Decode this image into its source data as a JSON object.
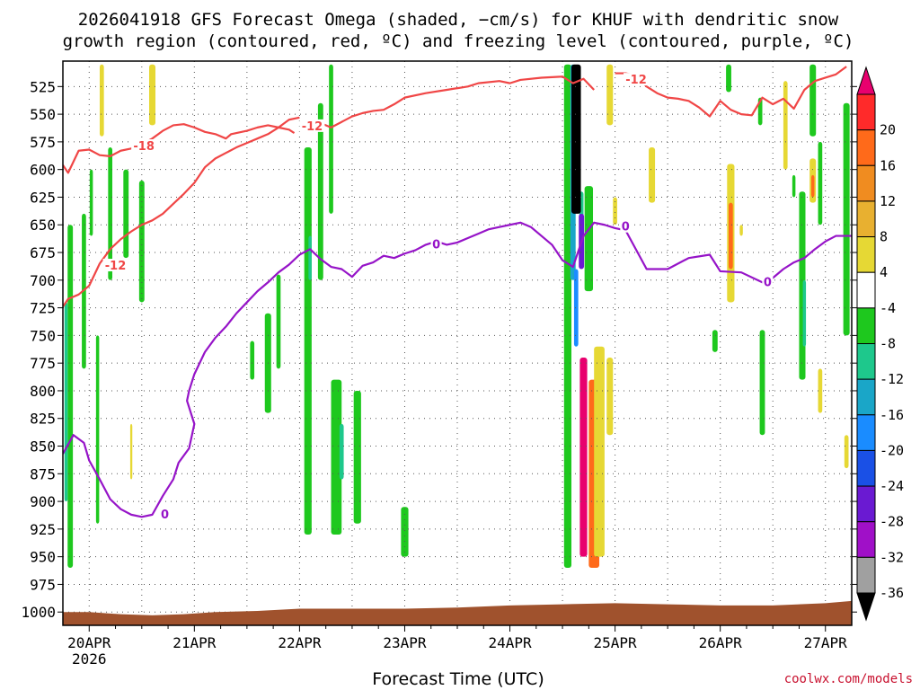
{
  "chart_data": {
    "type": "heatmap",
    "title_line1": "2026041918 GFS Forecast Omega (shaded, −cm/s) for KHUF with dendritic snow",
    "title_line2": "growth region (contoured, red, ºC) and freezing level (contoured, purple, ºC)",
    "xlabel": "Forecast Time (UTC)",
    "credit": "coolwx.com/models",
    "x_axis": {
      "unit": "days since 2026-04-19 00 UTC (ticks at 00 UTC)",
      "range": [
        0.75,
        8.25
      ],
      "ticks": [
        {
          "x": 1,
          "label": "20APR",
          "sublabel": "2026"
        },
        {
          "x": 2,
          "label": "21APR"
        },
        {
          "x": 3,
          "label": "22APR"
        },
        {
          "x": 4,
          "label": "23APR"
        },
        {
          "x": 5,
          "label": "24APR"
        },
        {
          "x": 6,
          "label": "25APR"
        },
        {
          "x": 7,
          "label": "26APR"
        },
        {
          "x": 8,
          "label": "27APR"
        }
      ]
    },
    "y_axis": {
      "unit": "hPa",
      "range": [
        1012,
        502
      ],
      "ticks": [
        525,
        550,
        575,
        600,
        625,
        650,
        675,
        700,
        725,
        750,
        775,
        800,
        825,
        850,
        875,
        900,
        925,
        950,
        975,
        1000
      ]
    },
    "grid": true,
    "colorbar": {
      "labels": [
        "20",
        "16",
        "12",
        "8",
        "4",
        "-4",
        "-8",
        "-12",
        "-16",
        "-20",
        "-24",
        "-28",
        "-32",
        "-36"
      ],
      "colors": [
        "#e8006e",
        "#ff2a2a",
        "#ff6a1a",
        "#f08c20",
        "#e8b030",
        "#e6d834",
        "#ffffff",
        "#1ec81e",
        "#1ec88c",
        "#1aa6c8",
        "#1a8cff",
        "#1a50e6",
        "#6a1ad2",
        "#a010c8",
        "#a0a0a0",
        "#000000"
      ]
    },
    "terrain": {
      "color": "#a0522d",
      "surface": [
        [
          0.75,
          1000
        ],
        [
          1.0,
          1000
        ],
        [
          1.3,
          1002
        ],
        [
          1.6,
          1003
        ],
        [
          1.9,
          1002
        ],
        [
          2.2,
          1000
        ],
        [
          2.6,
          999
        ],
        [
          3.0,
          997
        ],
        [
          3.5,
          997
        ],
        [
          4.0,
          997
        ],
        [
          4.5,
          996
        ],
        [
          5.0,
          994
        ],
        [
          5.5,
          993
        ],
        [
          6.0,
          992
        ],
        [
          6.5,
          993
        ],
        [
          7.0,
          994
        ],
        [
          7.5,
          994
        ],
        [
          8.0,
          992
        ],
        [
          8.25,
          990
        ]
      ]
    },
    "dgz_contours": {
      "color": "#f04646",
      "lines": [
        {
          "label": "-18",
          "label_at": [
            1.52,
            580
          ],
          "points": [
            [
              0.75,
              596
            ],
            [
              0.8,
              603
            ],
            [
              0.9,
              583
            ],
            [
              1.0,
              582
            ],
            [
              1.1,
              587
            ],
            [
              1.2,
              588
            ],
            [
              1.3,
              583
            ],
            [
              1.4,
              581
            ],
            [
              1.5,
              577
            ],
            [
              1.6,
              572
            ],
            [
              1.7,
              565
            ],
            [
              1.8,
              560
            ],
            [
              1.9,
              559
            ],
            [
              2.0,
              562
            ],
            [
              2.1,
              566
            ],
            [
              2.2,
              568
            ],
            [
              2.3,
              572
            ],
            [
              2.35,
              568
            ],
            [
              2.5,
              565
            ],
            [
              2.6,
              562
            ],
            [
              2.7,
              560
            ],
            [
              2.8,
              562
            ],
            [
              2.9,
              564
            ],
            [
              2.95,
              567
            ]
          ]
        },
        {
          "label": "-12",
          "label_at": [
            1.25,
            688
          ],
          "points": [
            [
              0.75,
              724
            ],
            [
              0.8,
              717
            ],
            [
              0.9,
              713
            ],
            [
              1.0,
              705
            ],
            [
              1.1,
              685
            ],
            [
              1.2,
              672
            ],
            [
              1.3,
              663
            ],
            [
              1.4,
              656
            ],
            [
              1.5,
              650
            ],
            [
              1.6,
              646
            ],
            [
              1.7,
              640
            ],
            [
              1.8,
              631
            ],
            [
              1.9,
              622
            ],
            [
              2.0,
              612
            ],
            [
              2.1,
              598
            ],
            [
              2.2,
              590
            ],
            [
              2.3,
              585
            ],
            [
              2.4,
              580
            ],
            [
              2.5,
              576
            ],
            [
              2.6,
              572
            ],
            [
              2.7,
              568
            ],
            [
              2.8,
              562
            ],
            [
              2.9,
              555
            ],
            [
              3.0,
              553
            ]
          ]
        },
        {
          "label": "-12",
          "label_at": [
            3.12,
            562
          ],
          "points": [
            [
              3.05,
              557
            ],
            [
              3.2,
              558
            ],
            [
              3.3,
              562
            ],
            [
              3.4,
              557
            ],
            [
              3.5,
              552
            ],
            [
              3.6,
              549
            ],
            [
              3.7,
              547
            ],
            [
              3.8,
              546
            ],
            [
              3.9,
              541
            ],
            [
              4.0,
              535
            ],
            [
              4.2,
              531
            ],
            [
              4.4,
              528
            ],
            [
              4.6,
              525
            ],
            [
              4.7,
              522
            ],
            [
              4.9,
              520
            ],
            [
              5.0,
              522
            ],
            [
              5.1,
              519
            ],
            [
              5.3,
              517
            ],
            [
              5.5,
              516
            ],
            [
              5.6,
              522
            ],
            [
              5.7,
              518
            ],
            [
              5.8,
              528
            ]
          ]
        },
        {
          "label": "-12",
          "label_at": [
            6.2,
            520
          ],
          "points": [
            [
              6.0,
              513
            ],
            [
              6.1,
              513
            ],
            [
              6.2,
              515
            ],
            [
              6.3,
              525
            ],
            [
              6.4,
              531
            ],
            [
              6.5,
              535
            ],
            [
              6.6,
              536
            ],
            [
              6.7,
              538
            ],
            [
              6.8,
              544
            ],
            [
              6.9,
              552
            ],
            [
              7.0,
              538
            ],
            [
              7.1,
              546
            ],
            [
              7.2,
              550
            ],
            [
              7.3,
              551
            ],
            [
              7.4,
              535
            ],
            [
              7.5,
              541
            ],
            [
              7.6,
              536
            ],
            [
              7.7,
              545
            ],
            [
              7.8,
              528
            ],
            [
              7.9,
              520
            ],
            [
              8.0,
              517
            ],
            [
              8.1,
              514
            ],
            [
              8.2,
              507
            ]
          ]
        }
      ]
    },
    "freezing_level": {
      "color": "#9614c8",
      "points": [
        [
          0.75,
          857
        ],
        [
          0.85,
          840
        ],
        [
          0.95,
          847
        ],
        [
          1.0,
          863
        ],
        [
          1.1,
          880
        ],
        [
          1.2,
          898
        ],
        [
          1.3,
          907
        ],
        [
          1.4,
          912
        ],
        [
          1.5,
          914
        ],
        [
          1.6,
          912
        ],
        [
          1.7,
          895
        ],
        [
          1.8,
          880
        ],
        [
          1.85,
          865
        ],
        [
          1.95,
          852
        ],
        [
          2.0,
          830
        ],
        [
          1.93,
          809
        ],
        [
          1.95,
          800
        ],
        [
          2.0,
          785
        ],
        [
          2.1,
          765
        ],
        [
          2.2,
          752
        ],
        [
          2.3,
          742
        ],
        [
          2.4,
          730
        ],
        [
          2.5,
          720
        ],
        [
          2.6,
          710
        ],
        [
          2.7,
          702
        ],
        [
          2.8,
          693
        ],
        [
          2.9,
          686
        ],
        [
          3.0,
          677
        ],
        [
          3.1,
          672
        ],
        [
          3.2,
          681
        ],
        [
          3.3,
          688
        ],
        [
          3.4,
          690
        ],
        [
          3.5,
          697
        ],
        [
          3.6,
          687
        ],
        [
          3.7,
          684
        ],
        [
          3.8,
          678
        ],
        [
          3.9,
          680
        ],
        [
          4.0,
          676
        ],
        [
          4.1,
          673
        ],
        [
          4.2,
          668
        ],
        [
          4.3,
          665
        ],
        [
          4.4,
          668
        ],
        [
          4.5,
          666
        ],
        [
          4.6,
          662
        ],
        [
          4.7,
          658
        ],
        [
          4.8,
          654
        ],
        [
          4.9,
          652
        ],
        [
          5.0,
          650
        ],
        [
          5.1,
          648
        ],
        [
          5.2,
          652
        ],
        [
          5.3,
          660
        ],
        [
          5.4,
          668
        ],
        [
          5.5,
          682
        ],
        [
          5.6,
          688
        ],
        [
          5.7,
          660
        ],
        [
          5.8,
          648
        ],
        [
          5.9,
          650
        ],
        [
          6.0,
          653
        ],
        [
          6.1,
          655
        ],
        [
          6.3,
          690
        ],
        [
          6.5,
          690
        ],
        [
          6.7,
          680
        ],
        [
          6.9,
          677
        ],
        [
          7.0,
          692
        ],
        [
          7.2,
          693
        ],
        [
          7.4,
          702
        ],
        [
          7.5,
          698
        ],
        [
          7.6,
          690
        ],
        [
          7.7,
          684
        ],
        [
          7.8,
          680
        ],
        [
          7.9,
          672
        ],
        [
          8.0,
          665
        ],
        [
          8.1,
          660
        ],
        [
          8.25,
          660
        ]
      ]
    },
    "omega_cells": [
      {
        "x": 0.82,
        "p1": 650,
        "p2": 960,
        "w": 0.05,
        "v": -8
      },
      {
        "x": 0.78,
        "p1": 720,
        "p2": 900,
        "w": 0.03,
        "v": -12
      },
      {
        "x": 0.95,
        "p1": 640,
        "p2": 780,
        "w": 0.04,
        "v": -8
      },
      {
        "x": 1.02,
        "p1": 600,
        "p2": 660,
        "w": 0.03,
        "v": -8
      },
      {
        "x": 1.08,
        "p1": 750,
        "p2": 920,
        "w": 0.03,
        "v": -8
      },
      {
        "x": 1.12,
        "p1": 505,
        "p2": 570,
        "w": 0.04,
        "v": 4
      },
      {
        "x": 1.2,
        "p1": 580,
        "p2": 700,
        "w": 0.04,
        "v": -8
      },
      {
        "x": 1.35,
        "p1": 600,
        "p2": 680,
        "w": 0.05,
        "v": -8
      },
      {
        "x": 1.4,
        "p1": 830,
        "p2": 880,
        "w": 0.02,
        "v": 4
      },
      {
        "x": 1.5,
        "p1": 610,
        "p2": 720,
        "w": 0.05,
        "v": -8
      },
      {
        "x": 1.6,
        "p1": 505,
        "p2": 560,
        "w": 0.06,
        "v": 4
      },
      {
        "x": 2.55,
        "p1": 755,
        "p2": 790,
        "w": 0.04,
        "v": -8
      },
      {
        "x": 2.7,
        "p1": 730,
        "p2": 820,
        "w": 0.06,
        "v": -8
      },
      {
        "x": 2.8,
        "p1": 695,
        "p2": 780,
        "w": 0.04,
        "v": -8
      },
      {
        "x": 3.08,
        "p1": 580,
        "p2": 930,
        "w": 0.07,
        "v": -8
      },
      {
        "x": 3.1,
        "p1": 660,
        "p2": 700,
        "w": 0.03,
        "v": -12
      },
      {
        "x": 3.2,
        "p1": 540,
        "p2": 700,
        "w": 0.05,
        "v": -8
      },
      {
        "x": 3.3,
        "p1": 505,
        "p2": 640,
        "w": 0.04,
        "v": -8
      },
      {
        "x": 3.35,
        "p1": 790,
        "p2": 930,
        "w": 0.1,
        "v": -8
      },
      {
        "x": 3.4,
        "p1": 830,
        "p2": 880,
        "w": 0.04,
        "v": -12
      },
      {
        "x": 3.55,
        "p1": 800,
        "p2": 920,
        "w": 0.07,
        "v": -8
      },
      {
        "x": 4.0,
        "p1": 905,
        "p2": 950,
        "w": 0.07,
        "v": -8
      },
      {
        "x": 5.55,
        "p1": 505,
        "p2": 960,
        "w": 0.07,
        "v": -8
      },
      {
        "x": 5.6,
        "p1": 505,
        "p2": 700,
        "w": 0.05,
        "v": -16
      },
      {
        "x": 5.68,
        "p1": 620,
        "p2": 660,
        "w": 0.04,
        "v": -12
      },
      {
        "x": 5.75,
        "p1": 615,
        "p2": 710,
        "w": 0.08,
        "v": -8
      },
      {
        "x": 5.95,
        "p1": 505,
        "p2": 560,
        "w": 0.06,
        "v": 4
      },
      {
        "x": 5.95,
        "p1": 770,
        "p2": 840,
        "w": 0.06,
        "v": 4
      },
      {
        "x": 6.0,
        "p1": 625,
        "p2": 650,
        "w": 0.04,
        "v": 4
      },
      {
        "x": 6.35,
        "p1": 580,
        "p2": 630,
        "w": 0.06,
        "v": 4
      },
      {
        "x": 6.95,
        "p1": 745,
        "p2": 765,
        "w": 0.05,
        "v": -8
      },
      {
        "x": 7.08,
        "p1": 505,
        "p2": 530,
        "w": 0.05,
        "v": -8
      },
      {
        "x": 7.1,
        "p1": 595,
        "p2": 720,
        "w": 0.07,
        "v": 4
      },
      {
        "x": 7.1,
        "p1": 630,
        "p2": 690,
        "w": 0.04,
        "v": 12
      },
      {
        "x": 7.2,
        "p1": 650,
        "p2": 660,
        "w": 0.03,
        "v": 4
      },
      {
        "x": 7.38,
        "p1": 535,
        "p2": 560,
        "w": 0.04,
        "v": -8
      },
      {
        "x": 7.4,
        "p1": 745,
        "p2": 840,
        "w": 0.05,
        "v": -8
      },
      {
        "x": 7.62,
        "p1": 520,
        "p2": 600,
        "w": 0.04,
        "v": 4
      },
      {
        "x": 7.7,
        "p1": 605,
        "p2": 625,
        "w": 0.03,
        "v": -8
      },
      {
        "x": 7.78,
        "p1": 620,
        "p2": 790,
        "w": 0.06,
        "v": -8
      },
      {
        "x": 7.8,
        "p1": 700,
        "p2": 760,
        "w": 0.03,
        "v": -12
      },
      {
        "x": 7.88,
        "p1": 505,
        "p2": 570,
        "w": 0.06,
        "v": -8
      },
      {
        "x": 7.88,
        "p1": 590,
        "p2": 630,
        "w": 0.06,
        "v": 4
      },
      {
        "x": 7.88,
        "p1": 605,
        "p2": 625,
        "w": 0.03,
        "v": 12
      },
      {
        "x": 7.95,
        "p1": 575,
        "p2": 650,
        "w": 0.04,
        "v": -8
      },
      {
        "x": 7.95,
        "p1": 780,
        "p2": 820,
        "w": 0.04,
        "v": 4
      },
      {
        "x": 8.2,
        "p1": 540,
        "p2": 750,
        "w": 0.06,
        "v": -8
      },
      {
        "x": 8.2,
        "p1": 840,
        "p2": 870,
        "w": 0.04,
        "v": 4
      }
    ],
    "omega_core": [
      {
        "x": 5.63,
        "p1": 505,
        "p2": 640,
        "w": 0.09,
        "v": -36
      },
      {
        "x": 5.68,
        "p1": 640,
        "p2": 690,
        "w": 0.05,
        "v": -28
      },
      {
        "x": 5.63,
        "p1": 690,
        "p2": 760,
        "w": 0.04,
        "v": -20
      },
      {
        "x": 5.7,
        "p1": 770,
        "p2": 950,
        "w": 0.07,
        "v": 20
      },
      {
        "x": 5.8,
        "p1": 790,
        "p2": 960,
        "w": 0.1,
        "v": 12
      },
      {
        "x": 5.85,
        "p1": 760,
        "p2": 950,
        "w": 0.1,
        "v": 4
      }
    ]
  }
}
